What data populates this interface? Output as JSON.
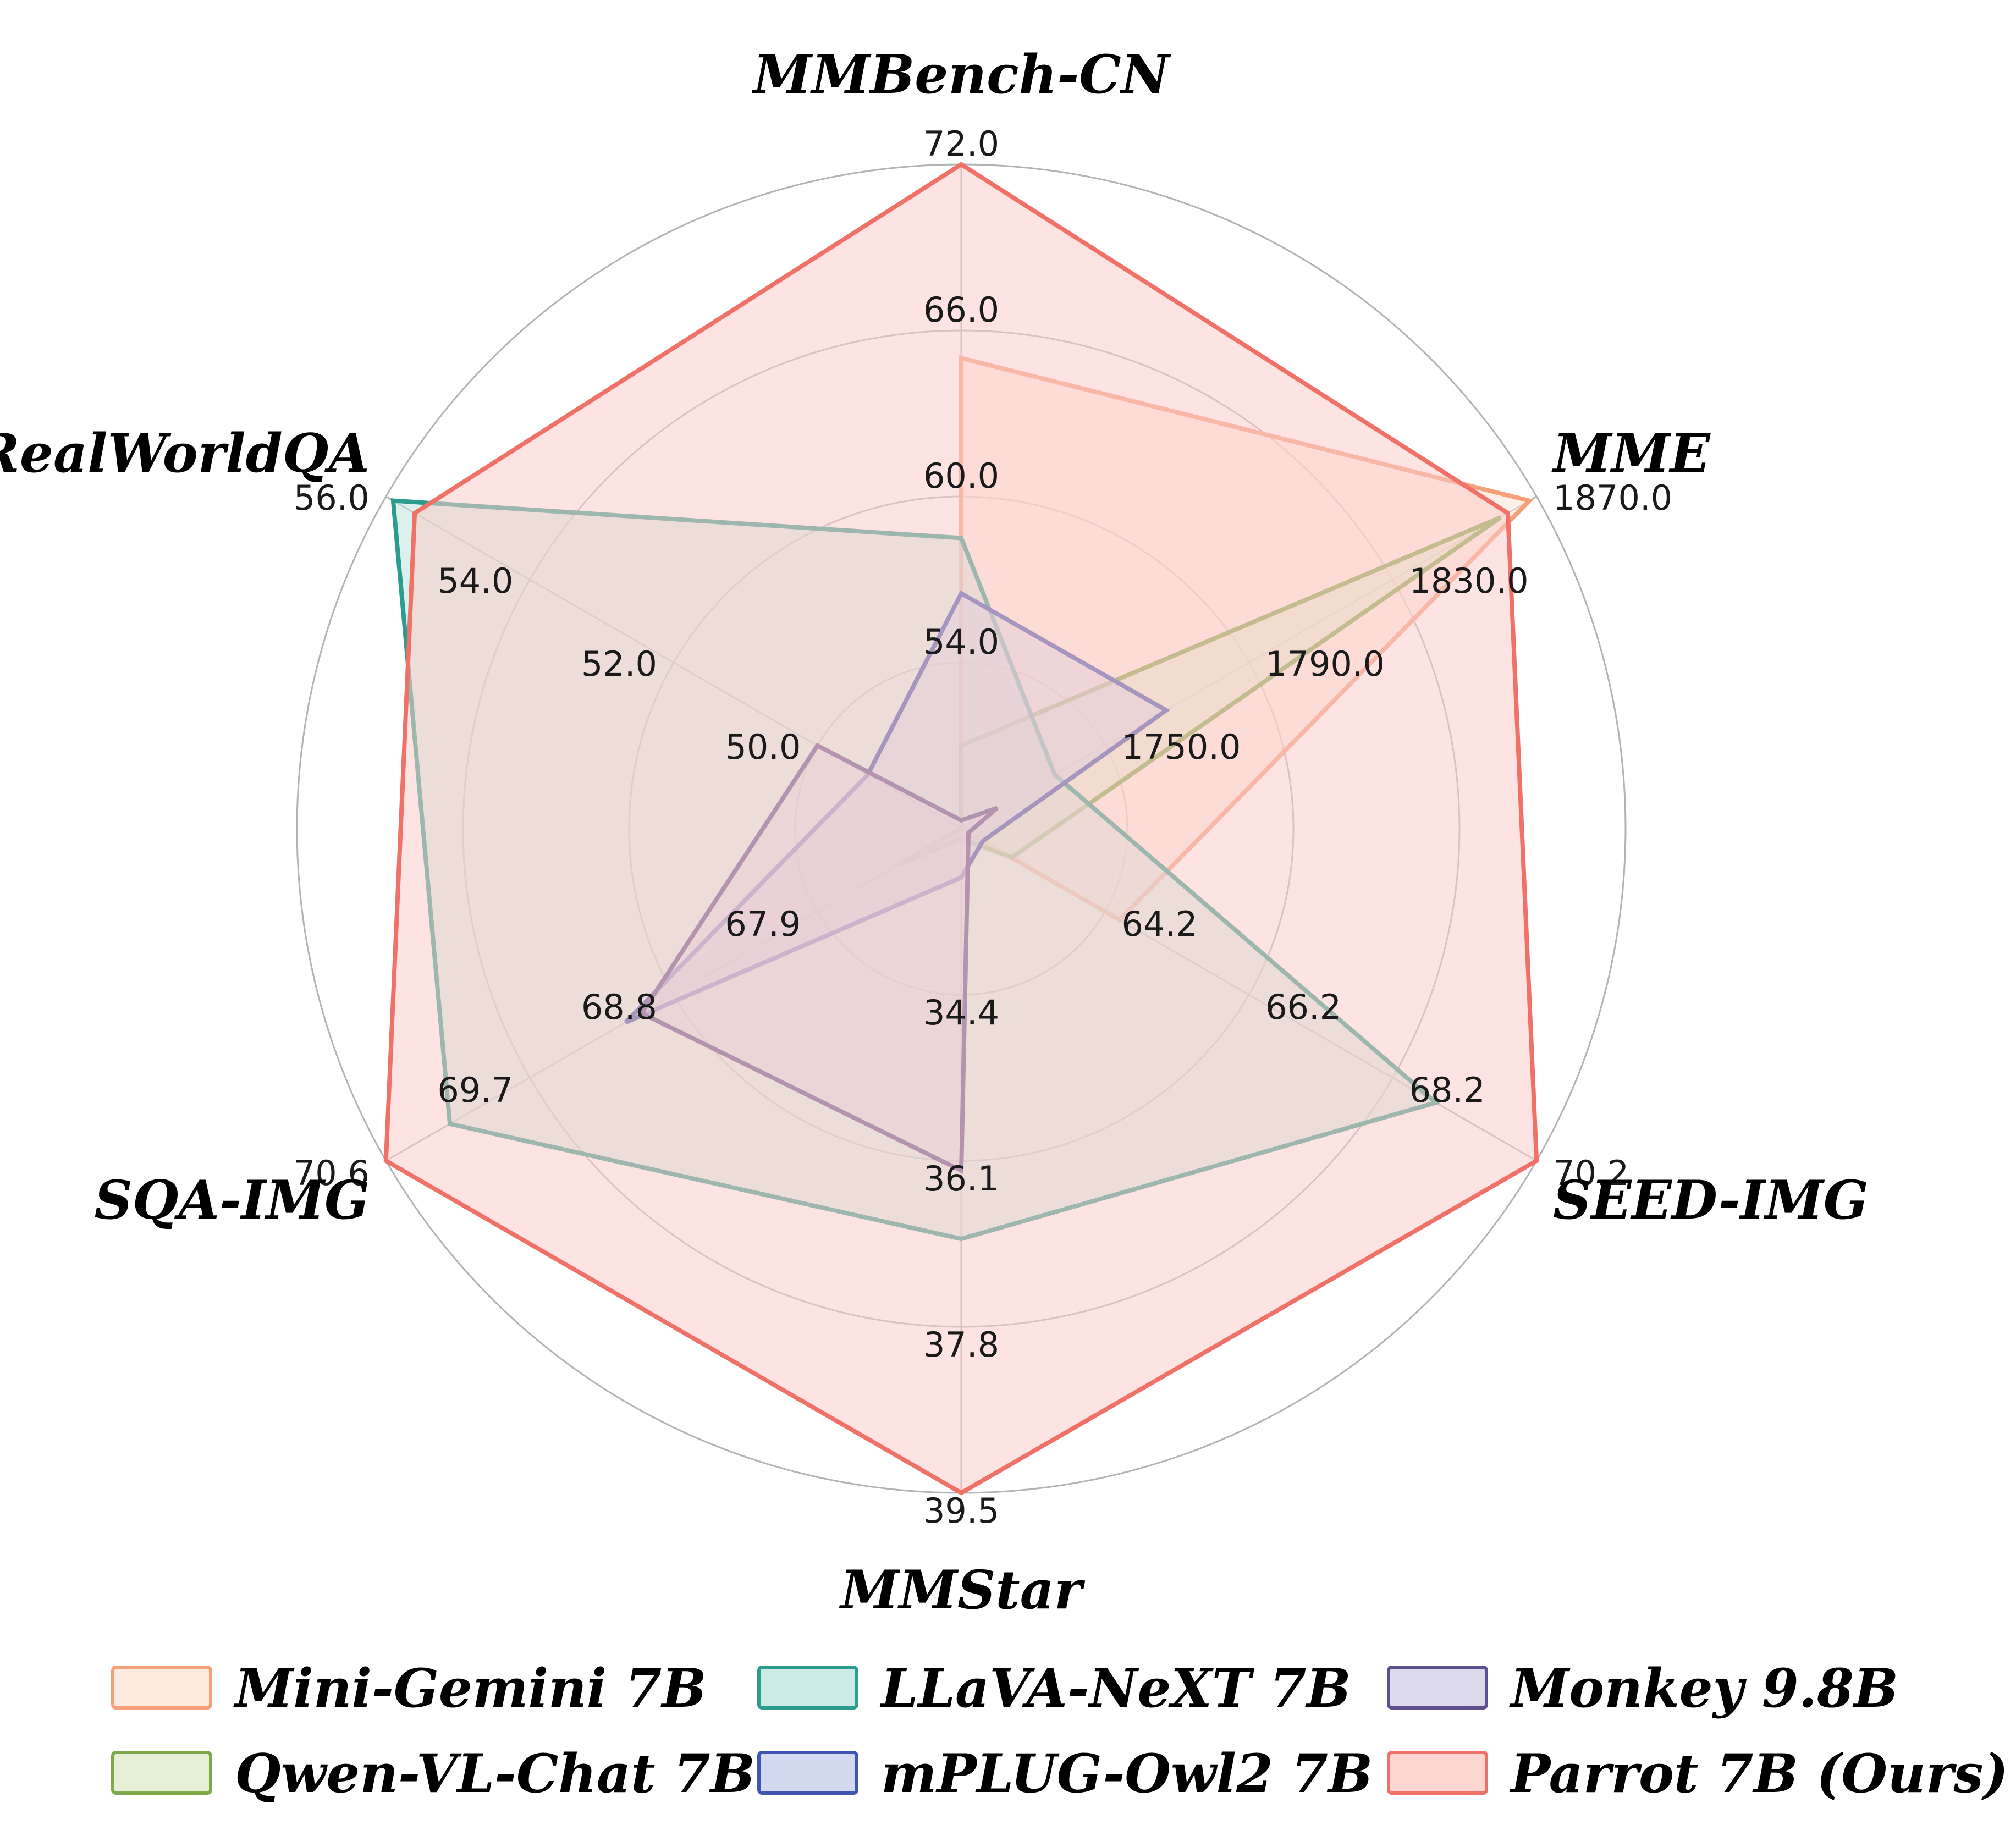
{
  "chart_data": {
    "type": "radar",
    "axes": [
      {
        "name": "MMBench-CN",
        "ticks": [
          "54.0",
          "60.0",
          "66.0",
          "72.0"
        ],
        "tick_values": [
          54.0,
          60.0,
          66.0,
          72.0
        ],
        "range": [
          48.0,
          72.0
        ]
      },
      {
        "name": "MME",
        "ticks": [
          "1750.0",
          "1790.0",
          "1830.0",
          "1870.0"
        ],
        "tick_values": [
          1750.0,
          1790.0,
          1830.0,
          1870.0
        ],
        "range": [
          1710.0,
          1870.0
        ]
      },
      {
        "name": "SEED-IMG",
        "ticks": [
          "64.2",
          "66.2",
          "68.2",
          "70.2"
        ],
        "tick_values": [
          64.2,
          66.2,
          68.2,
          70.2
        ],
        "range": [
          62.2,
          70.2
        ]
      },
      {
        "name": "MMStar",
        "ticks": [
          "34.4",
          "36.1",
          "37.8",
          "39.5"
        ],
        "tick_values": [
          34.4,
          36.1,
          37.8,
          39.5
        ],
        "range": [
          32.7,
          39.5
        ]
      },
      {
        "name": "SQA-IMG",
        "ticks": [
          "67.9",
          "68.8",
          "69.7",
          "70.6"
        ],
        "tick_values": [
          67.9,
          68.8,
          69.7,
          70.6
        ],
        "range": [
          67.0,
          70.6
        ]
      },
      {
        "name": "RealWorldQA",
        "ticks": [
          "50.0",
          "52.0",
          "54.0",
          "56.0"
        ],
        "tick_values": [
          50.0,
          52.0,
          54.0,
          56.0
        ],
        "range": [
          48.0,
          56.0
        ]
      }
    ],
    "series": [
      {
        "name": "Mini-Gemini 7B",
        "color": "#F6A07A",
        "fill": "#FDE3D6",
        "values": [
          65.0,
          1868.0,
          64.4,
          32.7,
          67.0,
          48.0
        ]
      },
      {
        "name": "Qwen-VL-Chat 7B",
        "color": "#7FA84A",
        "fill": "#DDEBCB",
        "values": [
          51.0,
          1860.0,
          62.9,
          32.8,
          67.4,
          48.0
        ]
      },
      {
        "name": "LLaVA-NeXT 7B",
        "color": "#2A9D8F",
        "fill": "#BFE6E0",
        "values": [
          58.5,
          1736.0,
          68.8,
          36.9,
          70.2,
          55.9
        ]
      },
      {
        "name": "mPLUG-Owl2 7B",
        "color": "#3F55B4",
        "fill": "#C7D0EE",
        "values": [
          56.5,
          1767.0,
          62.5,
          33.2,
          69.1,
          49.3
        ]
      },
      {
        "name": "Monkey 9.8B",
        "color": "#5E4F91",
        "fill": "#D3CFE6",
        "values": [
          48.3,
          1720.0,
          62.3,
          36.2,
          69.0,
          50.0
        ]
      },
      {
        "name": "Parrot 7B (Ours)",
        "color": "#F07167",
        "fill": "#FCCCC8",
        "values": [
          72.0,
          1862.0,
          70.2,
          39.5,
          70.6,
          55.6
        ]
      }
    ],
    "legend_position": "bottom",
    "grid": true
  }
}
